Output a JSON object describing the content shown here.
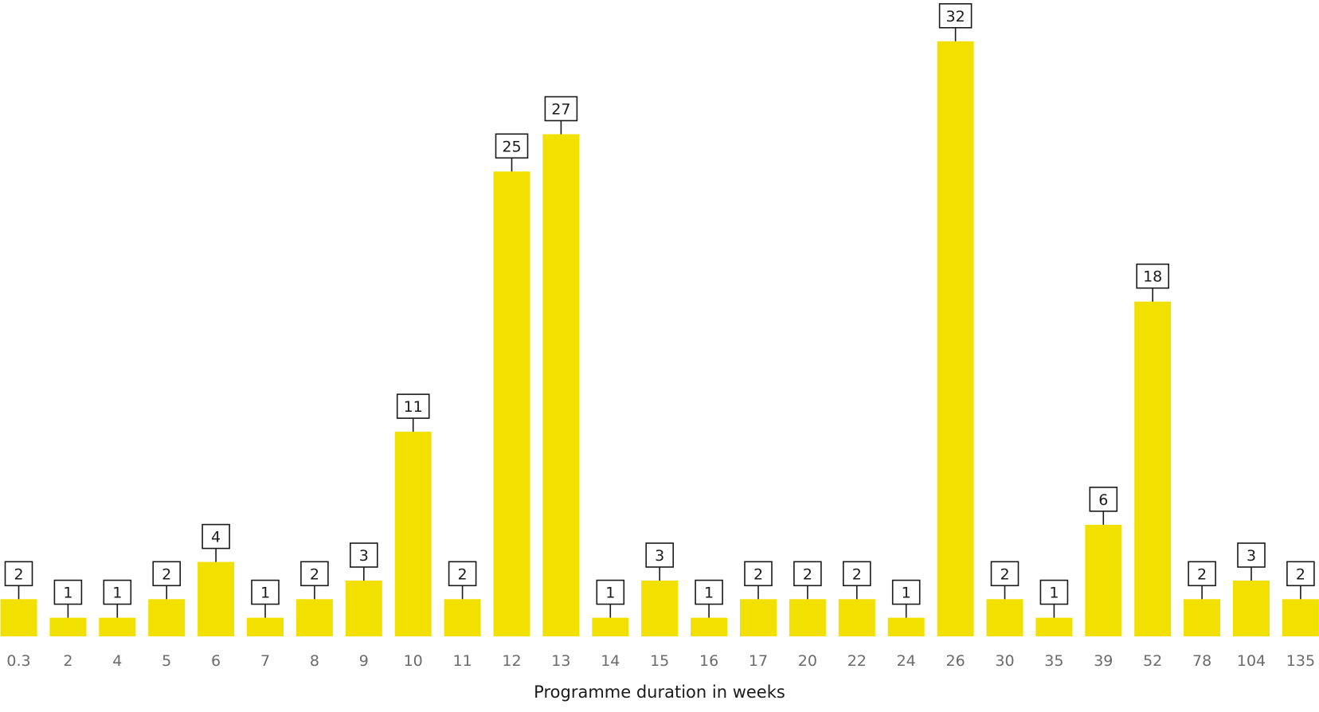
{
  "chart_data": {
    "type": "bar",
    "categories": [
      "0.3",
      "2",
      "4",
      "5",
      "6",
      "7",
      "8",
      "9",
      "10",
      "11",
      "12",
      "13",
      "14",
      "15",
      "16",
      "17",
      "20",
      "22",
      "24",
      "26",
      "30",
      "35",
      "39",
      "52",
      "78",
      "104",
      "135"
    ],
    "values": [
      2,
      1,
      1,
      2,
      4,
      1,
      2,
      3,
      11,
      2,
      25,
      27,
      1,
      3,
      1,
      2,
      2,
      2,
      1,
      32,
      2,
      1,
      6,
      18,
      2,
      3,
      2
    ],
    "xlabel": "Programme duration in weeks",
    "ylabel": "",
    "ylim": [
      0,
      32
    ],
    "grid": false,
    "legend": "none",
    "data_labels": "boxed above bars",
    "bar_color": "#f2e100",
    "tick_label_color": "#6b6b6b",
    "text_color": "#1a1a1a"
  }
}
